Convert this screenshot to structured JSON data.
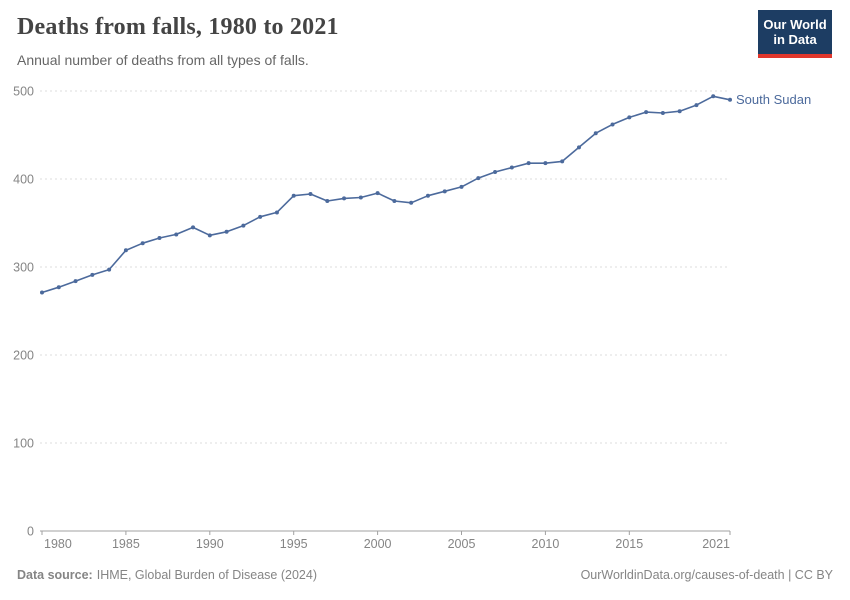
{
  "header": {
    "title": "Deaths from falls, 1980 to 2021",
    "subtitle": "Annual number of deaths from all types of falls.",
    "logo": {
      "line1": "Our World",
      "line2": "in Data",
      "bg_color": "#1d3d63",
      "accent_color": "#e0362c"
    }
  },
  "chart_data": {
    "type": "line",
    "title": "Deaths from falls, 1980 to 2021",
    "xlabel": "",
    "ylabel": "",
    "ylim": [
      0,
      500
    ],
    "yticks": [
      0,
      100,
      200,
      300,
      400,
      500
    ],
    "xticks": [
      1980,
      1985,
      1990,
      1995,
      2000,
      2005,
      2010,
      2015,
      2021
    ],
    "grid": "horizontal-dashed",
    "legend_position": "end-of-line-label",
    "x": [
      1980,
      1981,
      1982,
      1983,
      1984,
      1985,
      1986,
      1987,
      1988,
      1989,
      1990,
      1991,
      1992,
      1993,
      1994,
      1995,
      1996,
      1997,
      1998,
      1999,
      2000,
      2001,
      2002,
      2003,
      2004,
      2005,
      2006,
      2007,
      2008,
      2009,
      2010,
      2011,
      2012,
      2013,
      2014,
      2015,
      2016,
      2017,
      2018,
      2019,
      2020,
      2021
    ],
    "series": [
      {
        "name": "South Sudan",
        "color": "#4c6a9c",
        "values": [
          271,
          277,
          284,
          291,
          297,
          319,
          327,
          333,
          337,
          345,
          336,
          340,
          347,
          357,
          362,
          381,
          383,
          375,
          378,
          379,
          384,
          375,
          373,
          381,
          386,
          391,
          401,
          408,
          413,
          418,
          418,
          420,
          436,
          452,
          462,
          470,
          476,
          475,
          477,
          484,
          494,
          490
        ]
      }
    ],
    "colors": {
      "gridline": "#dddddd",
      "axis": "#a1a1a1",
      "tick_label": "#858585"
    }
  },
  "footer": {
    "source_label": "Data source:",
    "source_text": "IHME, Global Burden of Disease (2024)",
    "credit": "OurWorldinData.org/causes-of-death | CC BY"
  }
}
